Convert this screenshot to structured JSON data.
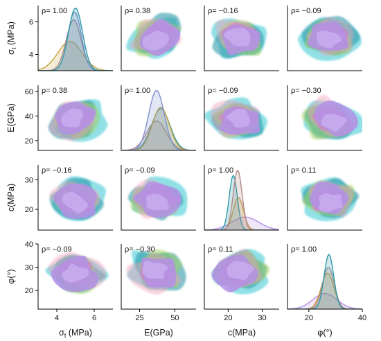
{
  "chart_data": {
    "type": "pairplot",
    "variables": [
      {
        "key": "st",
        "label_main": "σ",
        "label_sub": "t",
        "label_unit": " (MPa)",
        "range": [
          3.0,
          7.0
        ],
        "ticks": [
          4,
          6
        ],
        "xticks": [
          4,
          6
        ],
        "mean": 5.0,
        "sd": 0.6
      },
      {
        "key": "E",
        "label_main": "E(GPa)",
        "label_sub": "",
        "label_unit": "",
        "range": [
          12,
          65
        ],
        "ticks": [
          20,
          40,
          60
        ],
        "xticks": [
          25,
          50
        ],
        "mean": 37,
        "sd": 9
      },
      {
        "key": "c",
        "label_main": "c(MPa)",
        "label_sub": "",
        "label_unit": "",
        "range": [
          13,
          35
        ],
        "ticks": [
          20,
          30
        ],
        "xticks": [
          20,
          30
        ],
        "mean": 23,
        "sd": 4
      },
      {
        "key": "phi",
        "label_main": "φ(°)",
        "label_sub": "",
        "label_unit": "",
        "range": [
          12,
          40
        ],
        "ticks": [
          20,
          30,
          40
        ],
        "xticks": [
          20,
          40
        ],
        "mean": 28,
        "sd": 4
      }
    ],
    "y_labels": [
      "σt (MPa)",
      "E(GPa)",
      "c(MPa)",
      "φ(°)"
    ],
    "x_labels": [
      "σt (MPa)",
      "E(GPa)",
      "c(MPa)",
      "φ(°)"
    ],
    "correlations": [
      [
        "ρ= 1.00",
        "ρ= 0.38",
        "ρ= −0.16",
        "ρ= −0.09"
      ],
      [
        "ρ= 0.38",
        "ρ= 1.00",
        "ρ= −0.09",
        "ρ= −0.30"
      ],
      [
        "ρ= −0.16",
        "ρ= −0.09",
        "ρ= 1.00",
        "ρ= 0.11"
      ],
      [
        "ρ= −0.09",
        "ρ= −0.30",
        "ρ= 0.11",
        "ρ= 1.00"
      ]
    ],
    "correlation_values": [
      [
        1.0,
        0.38,
        -0.16,
        -0.09
      ],
      [
        0.38,
        1.0,
        -0.09,
        -0.3
      ],
      [
        -0.16,
        -0.09,
        1.0,
        0.11
      ],
      [
        -0.09,
        -0.3,
        0.11,
        1.0
      ]
    ],
    "series_colors": [
      "#2e9aa8",
      "#7e8fd0",
      "#c7a340",
      "#b08a8a",
      "#b48fe6",
      "#36c6d1"
    ],
    "diagonal_peaks": [
      [
        {
          "mean": 5.0,
          "sd": 0.38,
          "peak": 0.96,
          "color": "#2e9aa8"
        },
        {
          "mean": 4.95,
          "sd": 0.36,
          "peak": 0.9,
          "color": "#7e8fd0"
        },
        {
          "mean": 4.9,
          "sd": 0.4,
          "peak": 0.78,
          "color": "#b08a8a"
        },
        {
          "mean": 4.7,
          "sd": 0.65,
          "peak": 0.45,
          "color": "#c7a340"
        }
      ],
      [
        {
          "mean": 37,
          "sd": 5.5,
          "peak": 0.92,
          "color": "#7e8fd0"
        },
        {
          "mean": 40,
          "sd": 6.0,
          "peak": 0.66,
          "color": "#c7a340"
        },
        {
          "mean": 40,
          "sd": 6.5,
          "peak": 0.64,
          "color": "#2e9aa8"
        },
        {
          "mean": 37,
          "sd": 7.0,
          "peak": 0.45,
          "color": "#b08a8a"
        }
      ],
      [
        {
          "mean": 22.8,
          "sd": 1.3,
          "peak": 0.92,
          "color": "#b08a8a"
        },
        {
          "mean": 21.5,
          "sd": 1.2,
          "peak": 0.84,
          "color": "#2e9aa8"
        },
        {
          "mean": 23.0,
          "sd": 1.5,
          "peak": 0.5,
          "color": "#c7a340"
        },
        {
          "mean": 25,
          "sd": 4.0,
          "peak": 0.2,
          "color": "#b48fe6"
        }
      ],
      [
        {
          "mean": 27.5,
          "sd": 1.8,
          "peak": 0.84,
          "color": "#2e9aa8"
        },
        {
          "mean": 27.3,
          "sd": 2.2,
          "peak": 0.64,
          "color": "#b08a8a"
        },
        {
          "mean": 27.0,
          "sd": 2.4,
          "peak": 0.55,
          "color": "#c7a340"
        },
        {
          "mean": 26,
          "sd": 4.5,
          "peak": 0.24,
          "color": "#b48fe6"
        }
      ]
    ]
  }
}
